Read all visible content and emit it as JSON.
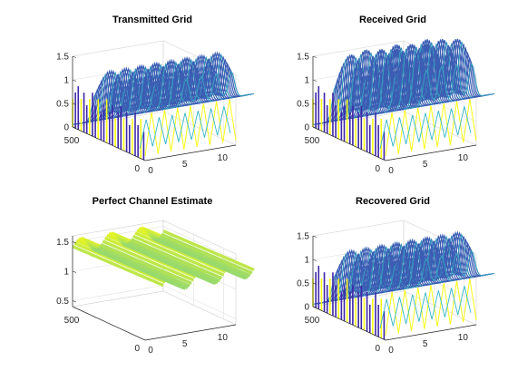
{
  "window": {
    "background": "#ffffff"
  },
  "chart_data": [
    {
      "type": "surface3d",
      "title": "Transmitted Grid",
      "z_ticks": [
        "0",
        "0.5",
        "1",
        "1.5"
      ],
      "y_ticks": [
        "0",
        "500"
      ],
      "x_ticks": [
        "5",
        "10"
      ],
      "zlim": [
        0,
        1.5
      ],
      "ylim": [
        0,
        600
      ],
      "xlim": [
        0,
        12
      ],
      "grid": true,
      "ridges": [
        {
          "at": 3,
          "peak": 1.0
        },
        {
          "at": 5,
          "peak": 1.0
        },
        {
          "at": 7,
          "peak": 1.0
        },
        {
          "at": 9,
          "peak": 1.0
        }
      ],
      "colors": {
        "low": "#3e26a8",
        "mid": "#35b7c6",
        "high": "#f9fb15"
      }
    },
    {
      "type": "surface3d",
      "title": "Received Grid",
      "z_ticks": [
        "0",
        "0.5",
        "1",
        "1.5"
      ],
      "y_ticks": [
        "0",
        "500"
      ],
      "x_ticks": [
        "5",
        "10"
      ],
      "zlim": [
        0,
        1.5
      ],
      "ylim": [
        0,
        600
      ],
      "xlim": [
        0,
        12
      ],
      "grid": true,
      "ridges": [
        {
          "at": 3,
          "peak": 1.35
        },
        {
          "at": 5,
          "peak": 1.4
        },
        {
          "at": 7,
          "peak": 1.35
        },
        {
          "at": 9,
          "peak": 1.3
        }
      ],
      "colors": {
        "low": "#3e26a8",
        "mid": "#35b7c6",
        "high": "#f9fb15"
      }
    },
    {
      "type": "surface3d",
      "title": "Perfect Channel Estimate",
      "z_ticks": [
        "0.5",
        "1",
        "1.5"
      ],
      "y_ticks": [
        "0",
        "500"
      ],
      "x_ticks": [
        "5",
        "10"
      ],
      "zlim": [
        0.4,
        1.6
      ],
      "ylim": [
        0,
        600
      ],
      "xlim": [
        0,
        12
      ],
      "grid": true,
      "surface": {
        "high_edge": 1.42,
        "low_edge": 0.5,
        "wave_count": 6
      },
      "colors": {
        "low": "#3e26a8",
        "mid": "#35b7c6",
        "high": "#f9fb15"
      }
    },
    {
      "type": "surface3d",
      "title": "Recovered Grid",
      "z_ticks": [
        "0",
        "0.5",
        "1",
        "1.5"
      ],
      "y_ticks": [
        "0",
        "500"
      ],
      "x_ticks": [
        "5",
        "10"
      ],
      "zlim": [
        0,
        1.5
      ],
      "ylim": [
        0,
        600
      ],
      "xlim": [
        0,
        12
      ],
      "grid": true,
      "ridges": [
        {
          "at": 3,
          "peak": 1.0
        },
        {
          "at": 5,
          "peak": 1.0
        },
        {
          "at": 7,
          "peak": 1.0
        },
        {
          "at": 9,
          "peak": 1.0
        }
      ],
      "colors": {
        "low": "#3e26a8",
        "mid": "#35b7c6",
        "high": "#f9fb15"
      }
    }
  ]
}
